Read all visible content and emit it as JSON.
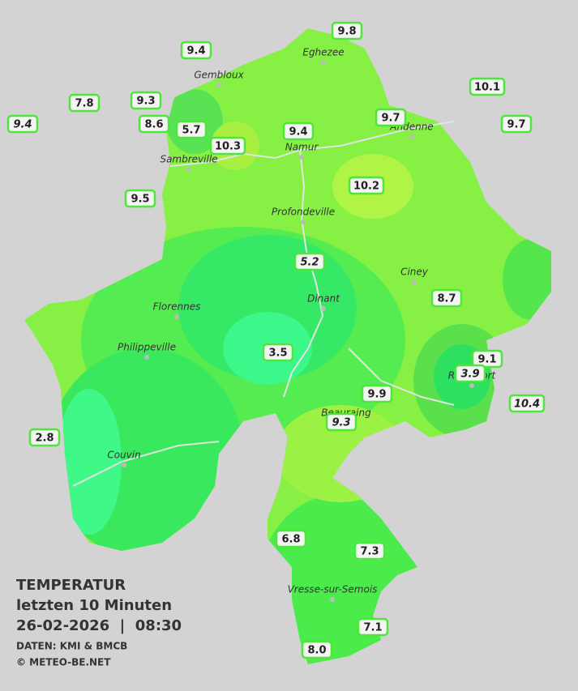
{
  "legend": {
    "title": "TEMPERATUR",
    "subtitle": "letzten 10 Minuten",
    "datetime": "26-02-2026  |  08:30",
    "source": "DATEN: KMI & BMCB",
    "copyright": "© METEO-BE.NET"
  },
  "cities": [
    "Eghezee",
    "Gembloux",
    "Andenne",
    "Namur",
    "Sambreville",
    "Profondeville",
    "Ciney",
    "Dinant",
    "Florennes",
    "Philippeville",
    "Beauraing",
    "Rochefort",
    "Couvin",
    "Vresse-sur-Semois"
  ],
  "stations": [
    "9.8",
    "9.4",
    "10.1",
    "7.8",
    "9.3",
    "9.4",
    "8.6",
    "5.7",
    "10.3",
    "9.4",
    "9.7",
    "9.7",
    "10.2",
    "9.5",
    "5.2",
    "8.7",
    "3.5",
    "9.1",
    "3.9",
    "9.9",
    "9.3",
    "10.4",
    "2.8",
    "6.8",
    "7.3",
    "7.1",
    "8.0"
  ]
}
